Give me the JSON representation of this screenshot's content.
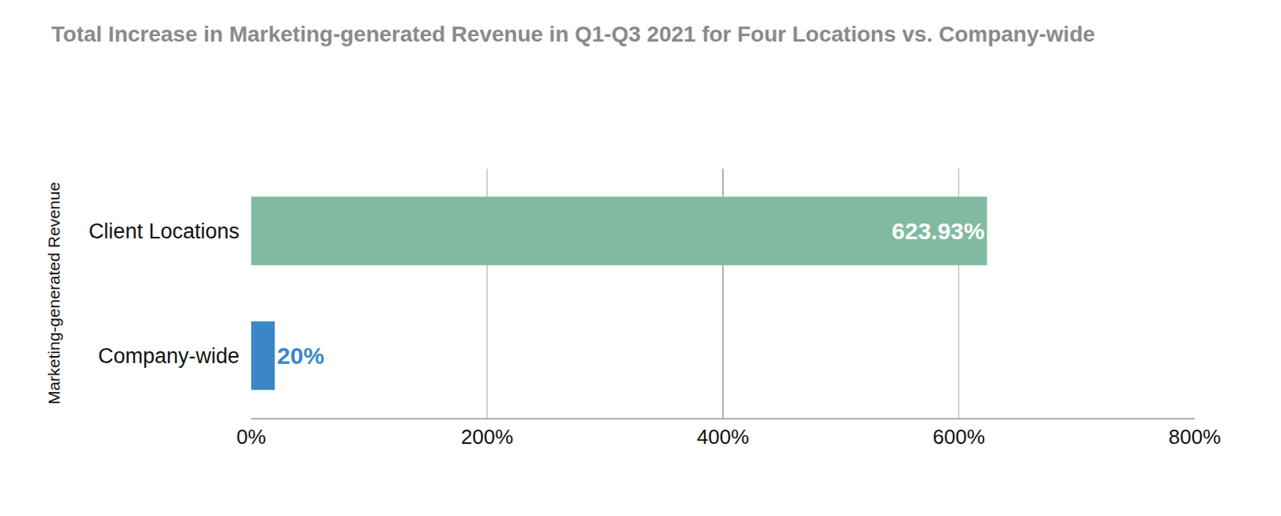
{
  "chart_data": {
    "type": "bar",
    "orientation": "horizontal",
    "title": "Total Increase in Marketing-generated Revenue in Q1-Q3 2021 for Four Locations vs. Company-wide",
    "y_label": "Marketing-generated Revenue",
    "categories": [
      "Client Locations",
      "Company-wide"
    ],
    "values": [
      623.93,
      20
    ],
    "value_labels": [
      "623.93%",
      "20%"
    ],
    "colors": [
      "#80bba1",
      "#3b87c6"
    ],
    "data_labels": true,
    "xlim": [
      0,
      800
    ],
    "xticks": [
      {
        "value": 0,
        "label": "0%"
      },
      {
        "value": 200,
        "label": "200%"
      },
      {
        "value": 400,
        "label": "400%"
      },
      {
        "value": 600,
        "label": "600%"
      },
      {
        "value": 800,
        "label": "800%"
      }
    ],
    "grid": true
  }
}
